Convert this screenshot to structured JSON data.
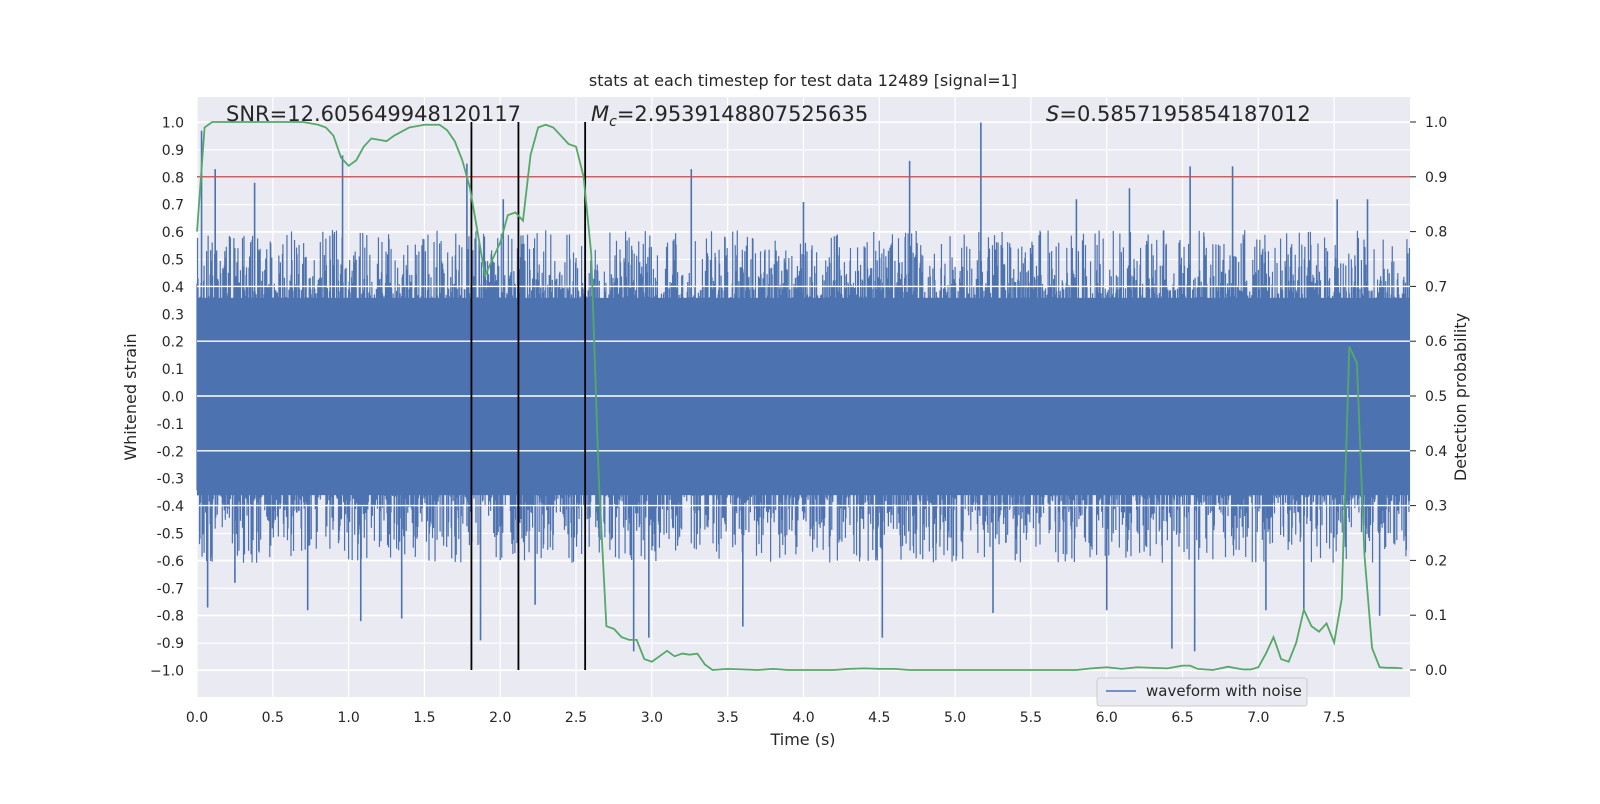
{
  "chart_data": {
    "type": "line",
    "title": "stats at each timestep for test data 12489 [signal=1]",
    "xlabel": "Time (s)",
    "ylabel": "Whitened strain",
    "y2label": "Detection probability",
    "xlim": [
      0.0,
      8.0
    ],
    "ylim": [
      -1.05,
      1.05
    ],
    "y2lim": [
      -0.05,
      1.05
    ],
    "x_ticks": [
      "0.0",
      "0.5",
      "1.0",
      "1.5",
      "2.0",
      "2.5",
      "3.0",
      "3.5",
      "4.0",
      "4.5",
      "5.0",
      "5.5",
      "6.0",
      "6.5",
      "7.0",
      "7.5"
    ],
    "y_ticks": [
      "1.0",
      "0.9",
      "0.8",
      "0.7",
      "0.6",
      "0.5",
      "0.4",
      "0.3",
      "0.2",
      "0.1",
      "0.0",
      "-0.1",
      "-0.2",
      "-0.3",
      "-0.4",
      "-0.5",
      "-0.6",
      "-0.7",
      "-0.8",
      "-0.9",
      "−1.0"
    ],
    "y2_ticks": [
      "1.0",
      "0.9",
      "0.8",
      "0.7",
      "0.6",
      "0.5",
      "0.4",
      "0.3",
      "0.2",
      "0.1",
      "0.0"
    ],
    "grid": true,
    "annotations": {
      "snr": "SNR=12.605649948120117",
      "mc_sub": "c",
      "mc_value": "=2.9539148807525635",
      "s_value": "=0.5857195854187012"
    },
    "threshold": {
      "value": 0.9,
      "axis": "y2",
      "color": "#c44e52"
    },
    "vertical_lines": [
      1.81,
      2.12,
      2.56
    ],
    "legend": {
      "label": "waveform with noise",
      "position": "lower right"
    },
    "series": [
      {
        "name": "waveform with noise",
        "axis": "y",
        "color": "#4c72b0",
        "envelope_upper": 0.45,
        "envelope_lower": -0.45,
        "spikes": [
          {
            "x": 0.03,
            "y": 0.97
          },
          {
            "x": 0.07,
            "y": -0.77
          },
          {
            "x": 0.12,
            "y": 0.83
          },
          {
            "x": 0.25,
            "y": -0.68
          },
          {
            "x": 0.38,
            "y": 0.78
          },
          {
            "x": 0.73,
            "y": -0.78
          },
          {
            "x": 0.96,
            "y": 0.88
          },
          {
            "x": 1.08,
            "y": -0.82
          },
          {
            "x": 1.35,
            "y": -0.81
          },
          {
            "x": 1.78,
            "y": 0.85
          },
          {
            "x": 1.87,
            "y": -0.89
          },
          {
            "x": 2.02,
            "y": 0.72
          },
          {
            "x": 2.23,
            "y": -0.76
          },
          {
            "x": 2.56,
            "y": 0.75
          },
          {
            "x": 2.88,
            "y": -0.93
          },
          {
            "x": 2.98,
            "y": -0.88
          },
          {
            "x": 3.26,
            "y": 0.83
          },
          {
            "x": 3.6,
            "y": -0.84
          },
          {
            "x": 4.0,
            "y": 0.71
          },
          {
            "x": 4.52,
            "y": -0.88
          },
          {
            "x": 4.7,
            "y": 0.86
          },
          {
            "x": 5.17,
            "y": 1.0
          },
          {
            "x": 5.25,
            "y": -0.79
          },
          {
            "x": 5.8,
            "y": 0.72
          },
          {
            "x": 6.0,
            "y": -0.78
          },
          {
            "x": 6.15,
            "y": 0.76
          },
          {
            "x": 6.43,
            "y": -0.92
          },
          {
            "x": 6.55,
            "y": 0.84
          },
          {
            "x": 6.58,
            "y": -0.93
          },
          {
            "x": 6.83,
            "y": 0.84
          },
          {
            "x": 7.05,
            "y": -0.78
          },
          {
            "x": 7.3,
            "y": -0.78
          },
          {
            "x": 7.52,
            "y": 0.72
          },
          {
            "x": 7.72,
            "y": 0.72
          },
          {
            "x": 7.8,
            "y": -0.8
          }
        ]
      },
      {
        "name": "",
        "axis": "y2",
        "color": "#55a868",
        "x": [
          0.0,
          0.05,
          0.1,
          0.15,
          0.2,
          0.3,
          0.4,
          0.5,
          0.6,
          0.7,
          0.8,
          0.85,
          0.9,
          0.95,
          1.0,
          1.05,
          1.1,
          1.15,
          1.25,
          1.3,
          1.4,
          1.5,
          1.6,
          1.65,
          1.7,
          1.75,
          1.8,
          1.85,
          1.9,
          1.95,
          2.0,
          2.05,
          2.1,
          2.15,
          2.2,
          2.25,
          2.3,
          2.35,
          2.4,
          2.45,
          2.5,
          2.55,
          2.6,
          2.65,
          2.7,
          2.75,
          2.8,
          2.85,
          2.9,
          2.95,
          3.0,
          3.05,
          3.1,
          3.15,
          3.2,
          3.25,
          3.3,
          3.35,
          3.4,
          3.5,
          3.7,
          3.8,
          3.9,
          4.0,
          4.2,
          4.3,
          4.4,
          4.5,
          4.6,
          4.7,
          4.8,
          5.0,
          5.5,
          5.8,
          5.9,
          6.0,
          6.1,
          6.2,
          6.4,
          6.5,
          6.55,
          6.6,
          6.7,
          6.8,
          6.9,
          6.95,
          7.0,
          7.05,
          7.1,
          7.15,
          7.2,
          7.25,
          7.3,
          7.35,
          7.4,
          7.45,
          7.5,
          7.55,
          7.6,
          7.65,
          7.7,
          7.75,
          7.8,
          7.85,
          7.9,
          7.95
        ],
        "values": [
          0.8,
          0.99,
          1.0,
          1.0,
          1.0,
          1.0,
          1.0,
          1.0,
          1.0,
          1.0,
          0.995,
          0.99,
          0.975,
          0.935,
          0.92,
          0.93,
          0.955,
          0.97,
          0.965,
          0.975,
          0.99,
          0.995,
          0.995,
          0.985,
          0.965,
          0.93,
          0.88,
          0.8,
          0.72,
          0.75,
          0.78,
          0.83,
          0.835,
          0.82,
          0.94,
          0.99,
          0.995,
          0.99,
          0.975,
          0.96,
          0.955,
          0.9,
          0.76,
          0.35,
          0.08,
          0.075,
          0.06,
          0.055,
          0.055,
          0.02,
          0.015,
          0.025,
          0.035,
          0.025,
          0.03,
          0.028,
          0.03,
          0.01,
          0.0,
          0.002,
          0.0,
          0.002,
          0.0,
          0.0,
          0.0,
          0.002,
          0.003,
          0.002,
          0.002,
          0.0,
          0.0,
          0.0,
          0.0,
          0.0,
          0.003,
          0.005,
          0.002,
          0.005,
          0.003,
          0.008,
          0.008,
          0.002,
          0.0,
          0.006,
          0.001,
          0.001,
          0.005,
          0.03,
          0.06,
          0.02,
          0.015,
          0.05,
          0.11,
          0.08,
          0.07,
          0.085,
          0.05,
          0.13,
          0.59,
          0.56,
          0.21,
          0.04,
          0.005,
          0.004,
          0.004,
          0.003
        ]
      }
    ]
  }
}
